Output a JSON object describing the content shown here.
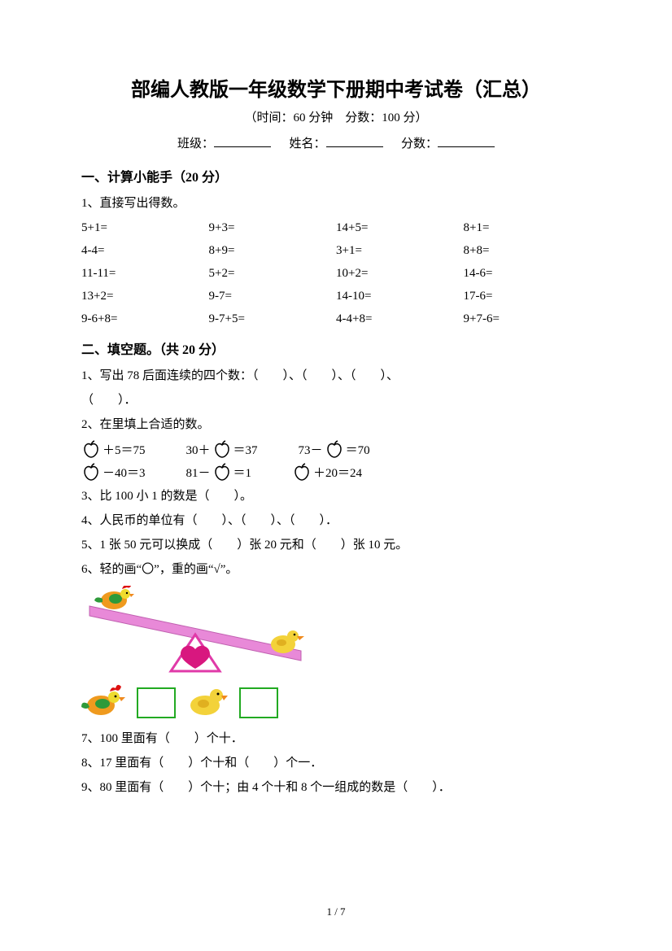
{
  "doc": {
    "title": "部编人教版一年级数学下册期中考试卷（汇总）",
    "subtitle": "（时间：60 分钟　分数：100 分）",
    "info_class": "班级：",
    "info_name": "姓名：",
    "info_score": "分数："
  },
  "section1": {
    "head": "一、计算小能手（20 分）",
    "q1_label": "1、直接写出得数。",
    "rows": [
      [
        "5+1=",
        "9+3=",
        "14+5=",
        "8+1="
      ],
      [
        "4-4=",
        "8+9=",
        "3+1=",
        "8+8="
      ],
      [
        "11-11=",
        "5+2=",
        "10+2=",
        "14-6="
      ],
      [
        "13+2=",
        "9-7=",
        "14-10=",
        "17-6="
      ],
      [
        "9-6+8=",
        "9-7+5=",
        "4-4+8=",
        "9+7-6="
      ]
    ]
  },
  "section2": {
    "head": "二、填空题。（共 20 分）",
    "q1": "1、写出 78 后面连续的四个数：（　　）、（　　）、（　　）、",
    "q1b": "（　　）．",
    "q2": "2、在里填上合适的数。",
    "apple_rows": [
      [
        {
          "pre": "",
          "mid": "＋5＝75",
          "apple_first": true
        },
        {
          "pre": "30＋",
          "mid": "＝37",
          "apple_first": false
        },
        {
          "pre": "73－",
          "mid": "＝70",
          "apple_first": false
        }
      ],
      [
        {
          "pre": "",
          "mid": "－40＝3",
          "apple_first": true
        },
        {
          "pre": "81－",
          "mid": "＝1",
          "apple_first": false
        },
        {
          "pre": "",
          "mid": "＋20＝24",
          "apple_first": true
        }
      ]
    ],
    "q3": "3、比 100 小 1 的数是（　　）。",
    "q4": "4、人民币的单位有（　　）、（　　）、（　　）．",
    "q5": "5、1 张 50 元可以换成（　　）张 20 元和（　　）张 10 元。",
    "q6": "6、轻的画“〇”，重的画“√”。",
    "q7": "7、100 里面有（　　）个十．",
    "q8": "8、17 里面有（　　）个十和（　　）个一．",
    "q9": "9、80 里面有（　　）个十；由 4 个十和 8 个一组成的数是（　　）．"
  },
  "illus": {
    "apple_outline": "#000000",
    "seesaw_plank": "#e889d8",
    "seesaw_base_outline": "#e03aa8",
    "seesaw_base_fill": "#ffffff",
    "heart_fill": "#d8177f",
    "rooster_body": "#ef9a1e",
    "rooster_wing": "#2e9a3a",
    "rooster_tail": "#2e9a3a",
    "rooster_head": "#eedb2e",
    "rooster_comb": "#d11",
    "duck_body": "#f3d23a",
    "duck_bill": "#f08a1d",
    "box_border": "#22aa22"
  },
  "pagenum": "1 / 7"
}
